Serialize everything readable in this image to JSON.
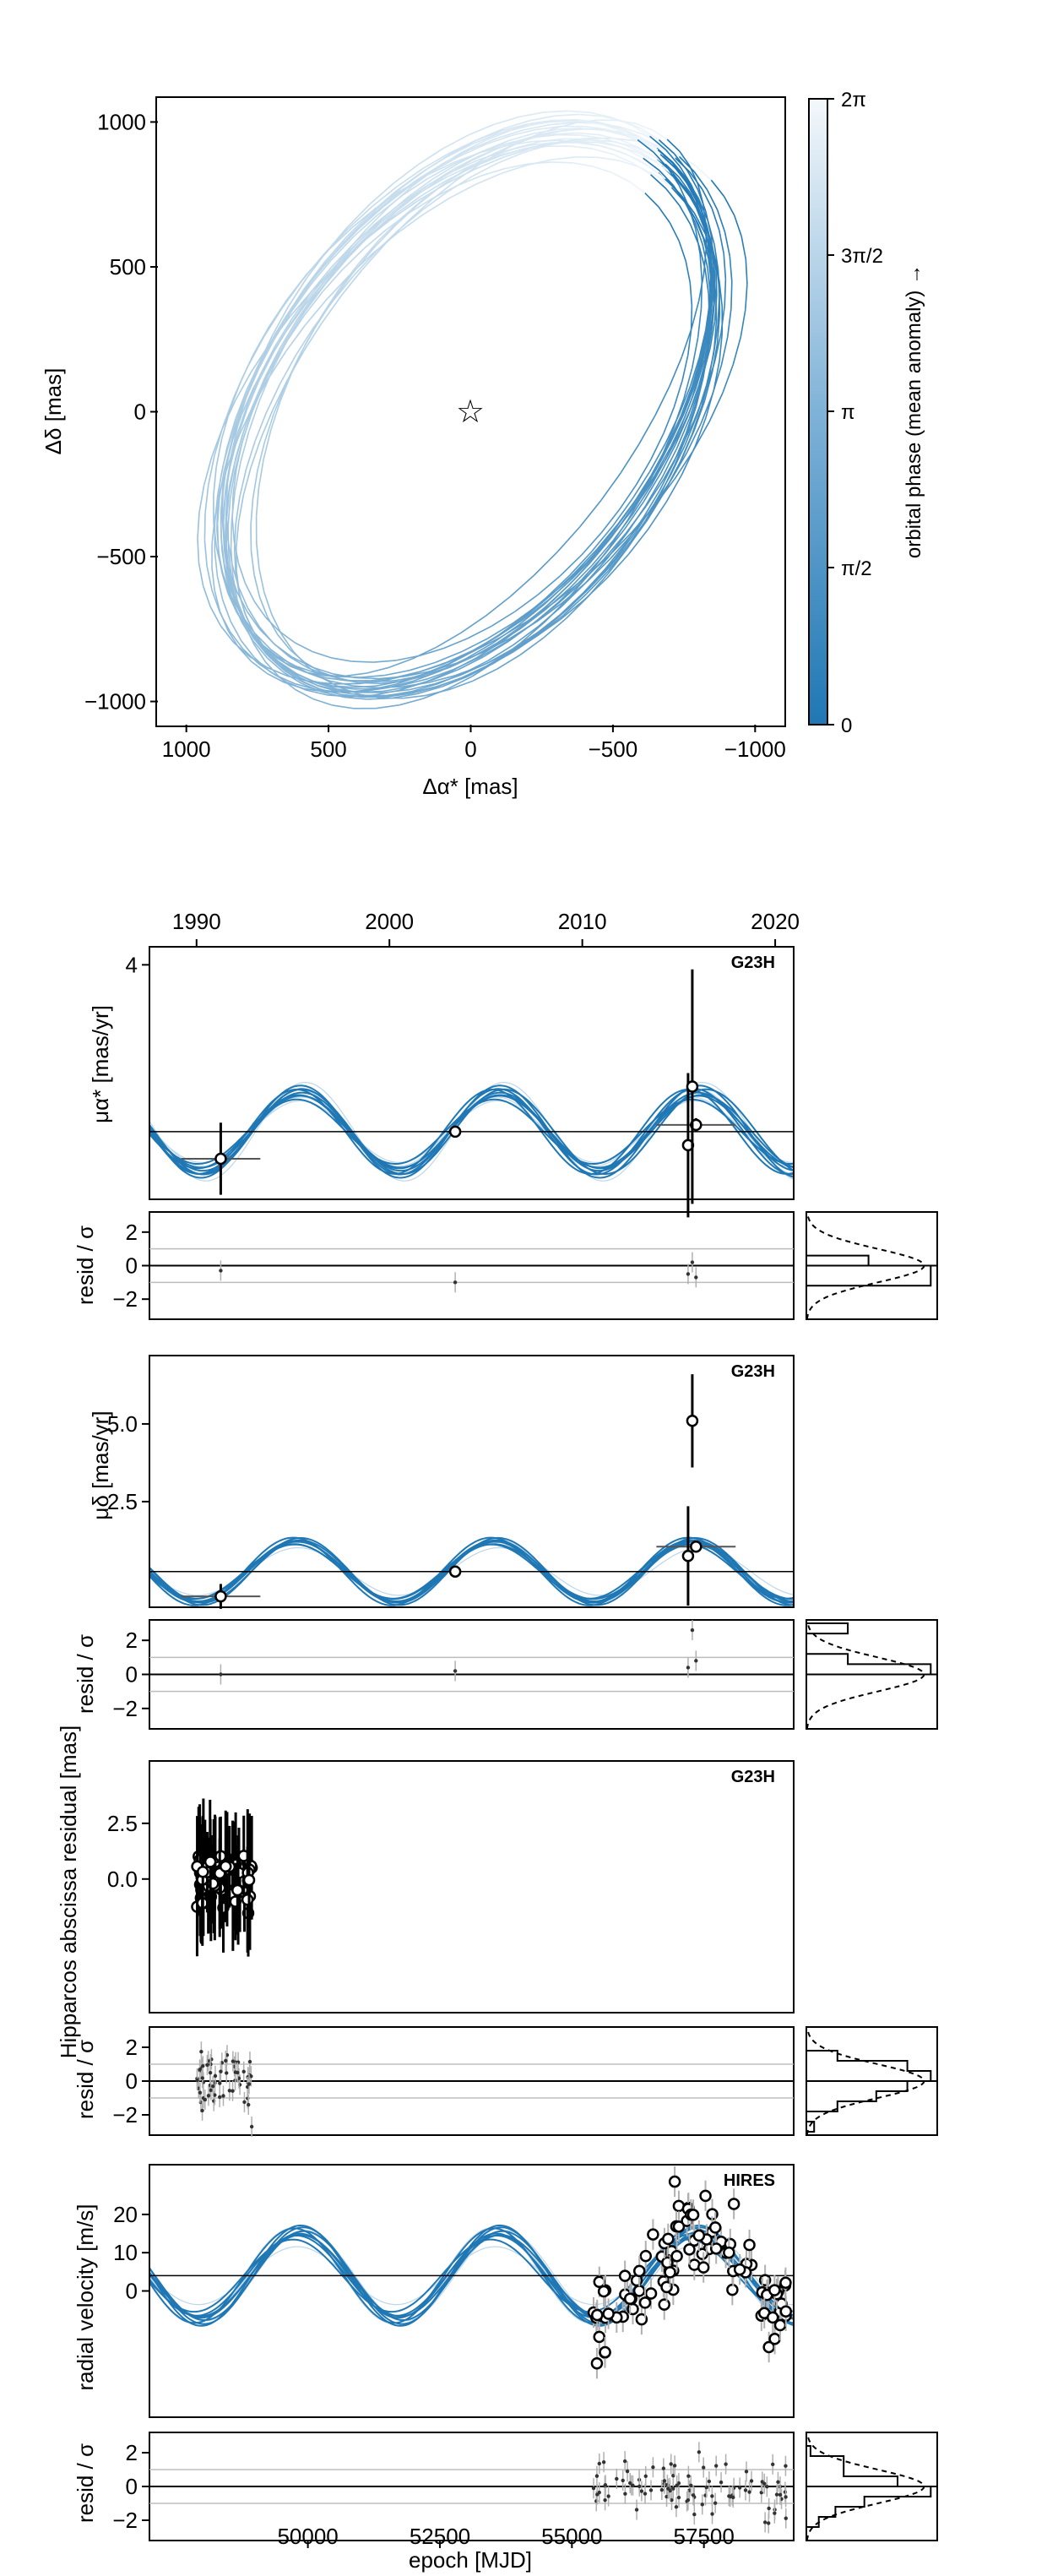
{
  "colors": {
    "orbit": "#1f77b4",
    "orbit_light": "#bcd6ea",
    "axis": "#000000",
    "grid": "#bdbdbd",
    "label_gray": "#666666"
  },
  "chart_data": [
    {
      "id": "orbit",
      "type": "line",
      "xlabel": "Δα* [mas]",
      "ylabel": "Δδ [mas]",
      "xlim": [
        1100,
        -1100
      ],
      "ylim": [
        -1080,
        1080
      ],
      "xticks": [
        1000,
        500,
        0,
        -500,
        -1000
      ],
      "xticklabels": [
        "1000",
        "500",
        "0",
        "−500",
        "−1000"
      ],
      "yticks": [
        -1000,
        -500,
        0,
        500,
        1000
      ],
      "yticklabels": [
        "−1000",
        "−500",
        "0",
        "500",
        "1000"
      ],
      "star": {
        "x": 0,
        "y": 0
      },
      "orbit_ellipse": {
        "center_x": 10,
        "center_y": 0,
        "semi_major": 1110,
        "semi_minor": 680,
        "angle_deg": 128
      },
      "colorbar": {
        "label": "orbital phase (mean anomaly) →",
        "ticklabels": [
          "0",
          "π/2",
          "π",
          "3π/2",
          "2π"
        ]
      }
    },
    {
      "id": "pmra",
      "type": "line",
      "instrument": "G23H",
      "ylabel": "μα* [mas/yr]",
      "top_xticklabels": [
        "1990",
        "2000",
        "2010",
        "2020"
      ],
      "top_xticks_year": [
        1990,
        2000,
        2010,
        2020
      ],
      "xlim_mjd": [
        47000,
        59200
      ],
      "ylim": [
        -1.2,
        4.4
      ],
      "yticks": [
        4
      ],
      "yticklabels": [
        "4"
      ],
      "model_level": 0.3,
      "model_amp": 0.85,
      "period_mjd": 3750,
      "phase_mjd": 48900,
      "points": [
        {
          "x": 48350,
          "y": -0.3,
          "yerr": 0.8,
          "xerr": 750
        },
        {
          "x": 52790,
          "y": 0.3,
          "yerr": 0.05,
          "xerr": 0
        },
        {
          "x": 57350,
          "y": 0.45,
          "yerr": 0.15,
          "xerr": 750
        },
        {
          "x": 57200,
          "y": 0.0,
          "yerr": 1.6,
          "xerr": 0
        },
        {
          "x": 57280,
          "y": 1.3,
          "yerr": 2.6,
          "xerr": 0
        }
      ],
      "resid_ylabel": "resid / σ",
      "resid_yticks": [
        2,
        0,
        -2
      ],
      "resid_yticklabels": [
        "2",
        "0",
        "−2"
      ],
      "resid_ylim": [
        -3.2,
        3.2
      ],
      "resid": [
        {
          "x": 48350,
          "y": -0.3
        },
        {
          "x": 52790,
          "y": -1.0
        },
        {
          "x": 57350,
          "y": -0.7
        },
        {
          "x": 57200,
          "y": -0.5
        },
        {
          "x": 57280,
          "y": 0.2
        }
      ]
    },
    {
      "id": "pmdec",
      "type": "line",
      "instrument": "G23H",
      "ylabel": "μδ [mas/yr]",
      "xlim_mjd": [
        47000,
        59200
      ],
      "ylim": [
        -0.9,
        7.2
      ],
      "yticks": [
        2.5,
        5.0
      ],
      "yticklabels": [
        "2.5",
        "5.0"
      ],
      "model_level": 0.25,
      "model_amp": 0.95,
      "period_mjd": 3750,
      "phase_mjd": 48900,
      "points": [
        {
          "x": 48350,
          "y": -0.55,
          "yerr": 0.4,
          "xerr": 750
        },
        {
          "x": 52790,
          "y": 0.25,
          "yerr": 0.05,
          "xerr": 0
        },
        {
          "x": 57350,
          "y": 1.05,
          "yerr": 0.15,
          "xerr": 750
        },
        {
          "x": 57200,
          "y": 0.75,
          "yerr": 1.6,
          "xerr": 0
        },
        {
          "x": 57280,
          "y": 5.1,
          "yerr": 1.5,
          "xerr": 0
        }
      ],
      "resid_ylabel": "resid / σ",
      "resid_yticks": [
        2,
        0,
        -2
      ],
      "resid_yticklabels": [
        "2",
        "0",
        "−2"
      ],
      "resid_ylim": [
        -3.2,
        3.2
      ],
      "resid": [
        {
          "x": 48350,
          "y": 0.0
        },
        {
          "x": 52790,
          "y": 0.2
        },
        {
          "x": 57350,
          "y": 0.8
        },
        {
          "x": 57200,
          "y": 0.4
        },
        {
          "x": 57280,
          "y": 2.6
        }
      ]
    },
    {
      "id": "hipparcos",
      "type": "scatter",
      "instrument": "G23H",
      "ylabel": "Hipparcos abscissa residual [mas]",
      "xlim_mjd": [
        47000,
        59200
      ],
      "ylim": [
        -6.0,
        5.3
      ],
      "yticks": [
        0.0,
        2.5
      ],
      "yticklabels": [
        "0.0",
        "2.5"
      ],
      "x_range_mjd": [
        47900,
        48950
      ],
      "n_points": 60,
      "point_scatter": 0.75,
      "point_err": 2.6,
      "resid_ylabel": "resid / σ",
      "resid_yticks": [
        2,
        0,
        -2
      ],
      "resid_yticklabels": [
        "2",
        "0",
        "−2"
      ],
      "resid_ylim": [
        -3.2,
        3.2
      ]
    },
    {
      "id": "rv",
      "type": "scatter",
      "instrument": "HIRES",
      "ylabel": "radial velocity [m/s]",
      "xlabel": "epoch [MJD]",
      "xlim_mjd": [
        47000,
        59200
      ],
      "xticks": [
        50000,
        52500,
        55000,
        57500
      ],
      "xticklabels": [
        "50000",
        "52500",
        "55000",
        "57500"
      ],
      "ylim": [
        -33,
        33
      ],
      "yticks": [
        0,
        10,
        20
      ],
      "yticklabels": [
        "0",
        "10",
        "20"
      ],
      "model_level": 4,
      "model_amp": 11.5,
      "period_mjd": 3750,
      "phase_mjd": 48900,
      "x_range_mjd": [
        55400,
        59100
      ],
      "n_points": 95,
      "point_scatter": 6,
      "resid_ylabel": "resid / σ",
      "resid_yticks": [
        2,
        0,
        -2
      ],
      "resid_yticklabels": [
        "2",
        "0",
        "−2"
      ],
      "resid_ylim": [
        -3.2,
        3.2
      ]
    }
  ]
}
